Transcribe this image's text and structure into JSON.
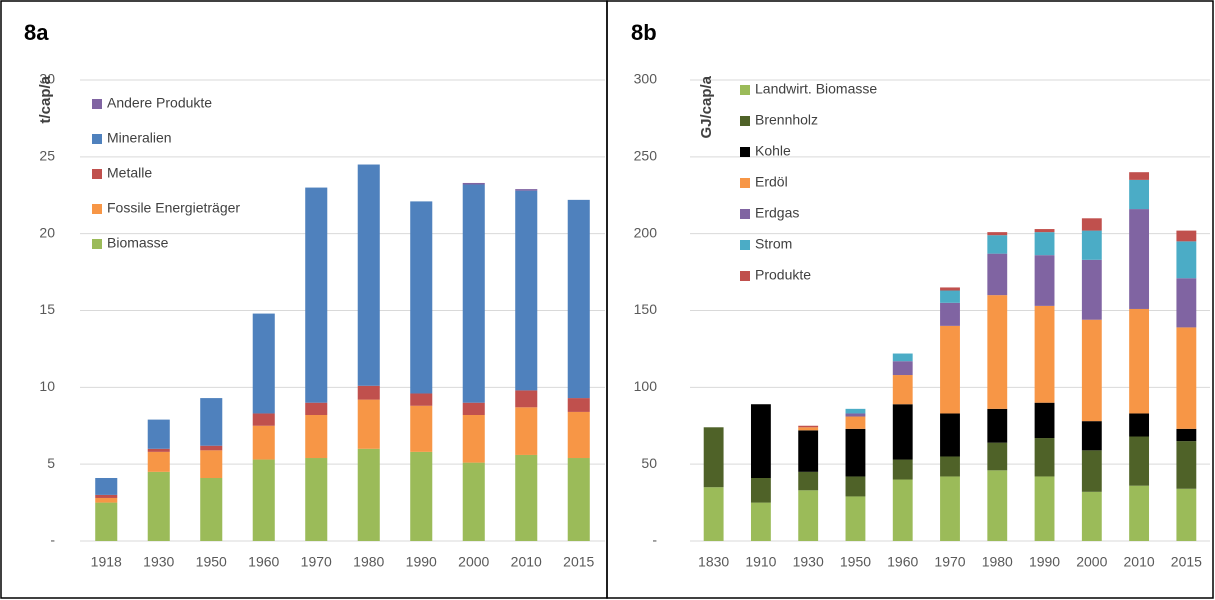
{
  "chart_data": [
    {
      "type": "stacked_bar",
      "title": "8a",
      "ylabel": "t/cap/a",
      "categories": [
        "1918",
        "1930",
        "1950",
        "1960",
        "1970",
        "1980",
        "1990",
        "2000",
        "2010",
        "2015"
      ],
      "series": [
        {
          "name": "Biomasse",
          "color": "#9bbb59",
          "values": [
            2.5,
            4.5,
            4.1,
            5.3,
            5.4,
            6.0,
            5.8,
            5.1,
            5.6,
            5.4
          ]
        },
        {
          "name": "Fossile Energieträger",
          "color": "#f79646",
          "values": [
            0.3,
            1.3,
            1.8,
            2.2,
            2.8,
            3.2,
            3.0,
            3.1,
            3.1,
            3.0
          ]
        },
        {
          "name": "Metalle",
          "color": "#c0504d",
          "values": [
            0.2,
            0.2,
            0.3,
            0.8,
            0.8,
            0.9,
            0.8,
            0.8,
            1.1,
            0.9
          ]
        },
        {
          "name": "Mineralien",
          "color": "#4f81bd",
          "values": [
            1.1,
            1.9,
            3.1,
            6.5,
            14.0,
            14.4,
            12.5,
            14.2,
            13.0,
            12.9
          ]
        },
        {
          "name": "Andere Produkte",
          "color": "#8064a2",
          "values": [
            0,
            0,
            0,
            0,
            0,
            0,
            0,
            0.1,
            0.1,
            0
          ]
        }
      ],
      "ylim": [
        0,
        30
      ],
      "yticks": [
        {
          "value": 0,
          "label": "-"
        },
        5,
        10,
        15,
        20,
        25,
        30
      ],
      "grid": true,
      "legend": "upper left",
      "legend_reversed": true
    },
    {
      "type": "stacked_bar",
      "title": "8b",
      "ylabel": "GJ/cap/a",
      "categories": [
        "1830",
        "1910",
        "1930",
        "1950",
        "1960",
        "1970",
        "1980",
        "1990",
        "2000",
        "2010",
        "2015"
      ],
      "series": [
        {
          "name": "Landwirt. Biomasse",
          "color": "#9bbb59",
          "values": [
            35,
            25,
            33,
            29,
            40,
            42,
            46,
            42,
            32,
            36,
            34
          ]
        },
        {
          "name": "Brennholz",
          "color": "#4f6228",
          "values": [
            39,
            16,
            12,
            13,
            13,
            13,
            18,
            25,
            27,
            32,
            31
          ]
        },
        {
          "name": "Kohle",
          "color": "#000000",
          "values": [
            0,
            48,
            27,
            31,
            36,
            28,
            22,
            23,
            19,
            15,
            8
          ]
        },
        {
          "name": "Erdöl",
          "color": "#f79646",
          "values": [
            0,
            0,
            2,
            8,
            19,
            57,
            74,
            63,
            66,
            68,
            66
          ]
        },
        {
          "name": "Erdgas",
          "color": "#8064a2",
          "values": [
            0,
            0,
            0,
            2,
            9,
            15,
            27,
            33,
            39,
            65,
            32
          ]
        },
        {
          "name": "Strom",
          "color": "#4bacc6",
          "values": [
            0,
            0,
            0,
            3,
            5,
            8,
            12,
            15,
            19,
            19,
            24
          ]
        },
        {
          "name": "Produkte",
          "color": "#c0504d",
          "values": [
            0,
            0,
            1,
            0,
            0,
            2,
            2,
            2,
            8,
            5,
            7
          ]
        }
      ],
      "ylim": [
        0,
        300
      ],
      "yticks": [
        {
          "value": 0,
          "label": "-"
        },
        50,
        100,
        150,
        200,
        250,
        300
      ],
      "grid": true,
      "legend": "upper left",
      "legend_reversed": false
    }
  ]
}
